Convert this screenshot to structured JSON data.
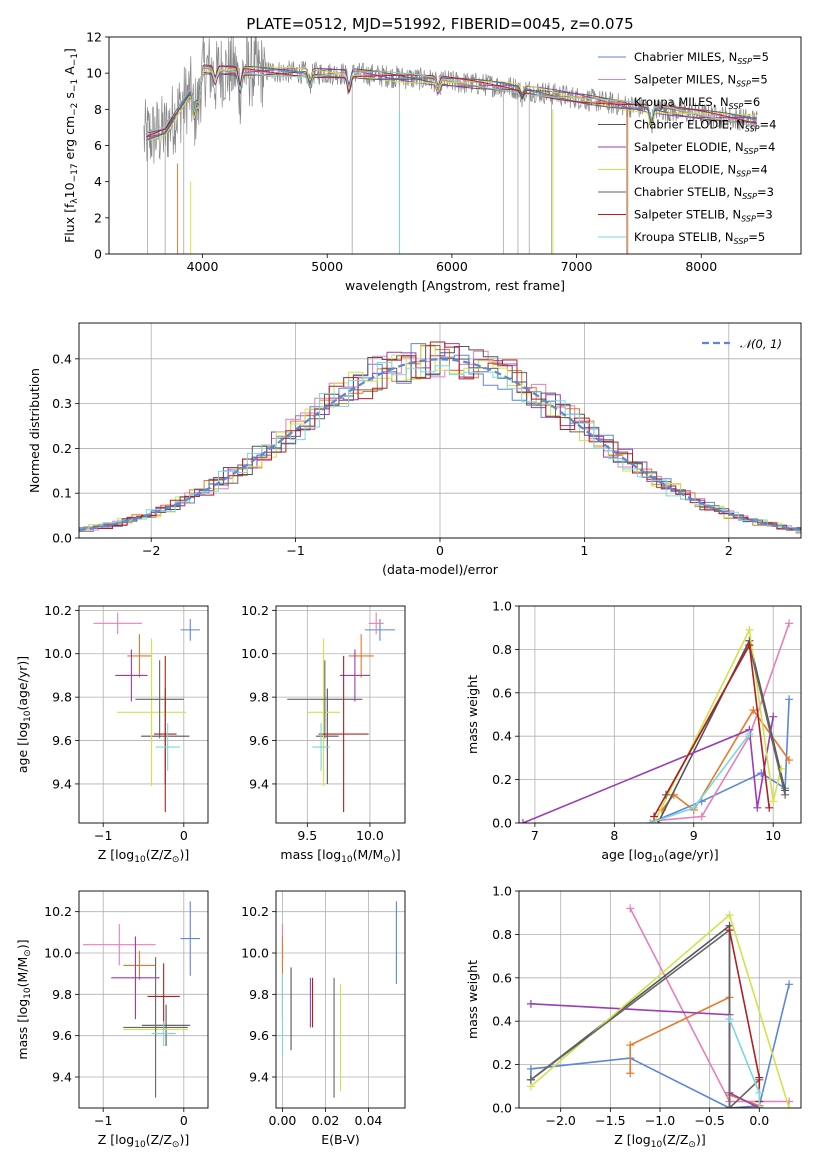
{
  "title": "PLATE=0512, MJD=51992, FIBERID=0045, z=0.075",
  "colors": {
    "chab_miles": "#5b87d8",
    "salp_miles": "#e87fb8",
    "krou_miles": "#e8782a",
    "chab_elodie": "#555555",
    "salp_elodie": "#9a3db5",
    "krou_elodie": "#d2e24a",
    "chab_stelib": "#666666",
    "salp_stelib": "#b02020",
    "krou_stelib": "#7ad8dc",
    "gaussian": "#5b87d8",
    "data": "#888888"
  },
  "chart_data": [
    {
      "id": "spectrum",
      "type": "line",
      "title": "PLATE=0512, MJD=51992, FIBERID=0045, z=0.075",
      "xlabel": "wavelength [Angstrom, rest frame]",
      "ylabel_parts": [
        "Flux [f",
        "λ",
        "10",
        "−17",
        " erg cm",
        "−2",
        " s",
        "−1",
        " A",
        "−1",
        "]"
      ],
      "xlim": [
        3250,
        8800
      ],
      "ylim": [
        0,
        12
      ],
      "xticks": [
        "4000",
        "5000",
        "6000",
        "7000",
        "8000"
      ],
      "yticks": [
        "0",
        "2",
        "4",
        "6",
        "8",
        "10",
        "12"
      ],
      "legend_position": "upper-right",
      "legend": [
        {
          "base": "Chabrier MILES, N",
          "sub": "SSP",
          "tail": "=5",
          "color_key": "chab_miles"
        },
        {
          "base": "Salpeter MILES, N",
          "sub": "SSP",
          "tail": "=5",
          "color_key": "salp_miles"
        },
        {
          "base": "Kroupa MILES, N",
          "sub": "SSP",
          "tail": "=6",
          "color_key": "krou_miles"
        },
        {
          "base": "Chabrier ELODIE, N",
          "sub": "SSP",
          "tail": "=4",
          "color_key": "chab_elodie"
        },
        {
          "base": "Salpeter ELODIE, N",
          "sub": "SSP",
          "tail": "=4",
          "color_key": "salp_elodie"
        },
        {
          "base": "Kroupa ELODIE, N",
          "sub": "SSP",
          "tail": "=4",
          "color_key": "krou_elodie"
        },
        {
          "base": "Chabrier STELIB, N",
          "sub": "SSP",
          "tail": "=3",
          "color_key": "chab_stelib"
        },
        {
          "base": "Salpeter STELIB, N",
          "sub": "SSP",
          "tail": "=3",
          "color_key": "salp_stelib"
        },
        {
          "base": "Kroupa STELIB, N",
          "sub": "SSP",
          "tail": "=5",
          "color_key": "krou_stelib"
        }
      ]
    },
    {
      "id": "residuals",
      "type": "histogram",
      "xlabel": "(data-model)/error",
      "ylabel": "Normed distribution",
      "xlim": [
        -2.5,
        2.5
      ],
      "ylim": [
        0,
        0.48
      ],
      "xticks": [
        "−2",
        "−1",
        "0",
        "1",
        "2"
      ],
      "yticks": [
        "0.0",
        "0.1",
        "0.2",
        "0.3",
        "0.4"
      ],
      "grid": true,
      "legend_position": "upper-right",
      "legend_label": "𝒩(0, 1)"
    },
    {
      "id": "age_vs_Z",
      "type": "scatter",
      "xlabel_parts": [
        "Z [log",
        "10",
        "(Z/Z",
        "⊙",
        ")]"
      ],
      "ylabel_parts": [
        "age  [log",
        "10",
        "(age/yr)]"
      ],
      "xlim": [
        -1.3,
        0.3
      ],
      "ylim": [
        9.22,
        10.22
      ],
      "xticks": [
        "−1",
        "0"
      ],
      "yticks": [
        "9.4",
        "9.6",
        "9.8",
        "10.0",
        "10.2"
      ],
      "grid": true,
      "points": [
        {
          "k": "chab_miles",
          "x": 0.08,
          "xe": 0.12,
          "y": 10.11,
          "ye": 0.05
        },
        {
          "k": "salp_miles",
          "x": -0.82,
          "xe": 0.3,
          "y": 10.14,
          "ye": 0.05
        },
        {
          "k": "krou_miles",
          "x": -0.55,
          "xe": 0.15,
          "y": 9.99,
          "ye": 0.1
        },
        {
          "k": "chab_elodie",
          "x": -0.23,
          "xe": 0.3,
          "y": 9.62,
          "ye": 0.22
        },
        {
          "k": "salp_elodie",
          "x": -0.65,
          "xe": 0.2,
          "y": 9.9,
          "ye": 0.12
        },
        {
          "k": "krou_elodie",
          "x": -0.4,
          "xe": 0.43,
          "y": 9.73,
          "ye": 0.34
        },
        {
          "k": "chab_stelib",
          "x": -0.3,
          "xe": 0.3,
          "y": 9.79,
          "ye": 0.18
        },
        {
          "k": "salp_stelib",
          "x": -0.23,
          "xe": 0.14,
          "y": 9.63,
          "ye": 0.36
        },
        {
          "k": "krou_stelib",
          "x": -0.2,
          "xe": 0.15,
          "y": 9.57,
          "ye": 0.11
        }
      ]
    },
    {
      "id": "age_vs_mass",
      "type": "scatter",
      "xlabel_parts": [
        "mass [log",
        "10",
        "(M/M",
        "⊙",
        ")]"
      ],
      "ylabel": "",
      "xlim": [
        9.25,
        10.28
      ],
      "ylim": [
        9.22,
        10.22
      ],
      "xticks": [
        "9.5",
        "10.0"
      ],
      "yticks": [
        "9.4",
        "9.6",
        "9.8",
        "10.0",
        "10.2"
      ],
      "grid": true,
      "points": [
        {
          "k": "chab_miles",
          "x": 10.08,
          "xe": 0.12,
          "y": 10.11,
          "ye": 0.05
        },
        {
          "k": "salp_miles",
          "x": 10.05,
          "xe": 0.06,
          "y": 10.14,
          "ye": 0.05
        },
        {
          "k": "krou_miles",
          "x": 9.93,
          "xe": 0.1,
          "y": 9.99,
          "ye": 0.1
        },
        {
          "k": "chab_elodie",
          "x": 9.66,
          "xe": 0.09,
          "y": 9.62,
          "ye": 0.22
        },
        {
          "k": "salp_elodie",
          "x": 9.88,
          "xe": 0.12,
          "y": 9.9,
          "ye": 0.12
        },
        {
          "k": "krou_elodie",
          "x": 9.63,
          "xe": 0.13,
          "y": 9.73,
          "ye": 0.34
        },
        {
          "k": "chab_stelib",
          "x": 9.64,
          "xe": 0.3,
          "y": 9.79,
          "ye": 0.18
        },
        {
          "k": "salp_stelib",
          "x": 9.79,
          "xe": 0.2,
          "y": 9.63,
          "ye": 0.36
        },
        {
          "k": "krou_stelib",
          "x": 9.61,
          "xe": 0.07,
          "y": 9.57,
          "ye": 0.11
        }
      ]
    },
    {
      "id": "weight_vs_age",
      "type": "line",
      "xlabel_parts": [
        "age  [log",
        "10",
        "(age/yr)]"
      ],
      "ylabel": "mass weight",
      "xlim": [
        6.8,
        10.35
      ],
      "ylim": [
        0,
        1.0
      ],
      "xticks": [
        "7",
        "8",
        "9",
        "10"
      ],
      "yticks": [
        "0.0",
        "0.2",
        "0.4",
        "0.6",
        "0.8",
        "1.0"
      ],
      "grid": true,
      "series": [
        {
          "k": "chab_miles",
          "x": [
            8.45,
            9.1,
            9.85,
            10.15,
            10.2
          ],
          "y": [
            0.0,
            0.1,
            0.23,
            0.16,
            0.57
          ]
        },
        {
          "k": "salp_miles",
          "x": [
            8.5,
            9.1,
            9.7,
            10.2
          ],
          "y": [
            0.01,
            0.03,
            0.4,
            0.92
          ]
        },
        {
          "k": "krou_miles",
          "x": [
            8.6,
            8.75,
            9.0,
            9.75,
            10.2
          ],
          "y": [
            0.06,
            0.13,
            0.06,
            0.52,
            0.29
          ]
        },
        {
          "k": "chab_elodie",
          "x": [
            8.55,
            9.7,
            10.15
          ],
          "y": [
            0.0,
            0.84,
            0.15
          ]
        },
        {
          "k": "salp_elodie",
          "x": [
            6.85,
            9.7,
            9.8,
            10.0
          ],
          "y": [
            0.0,
            0.43,
            0.07,
            0.49
          ]
        },
        {
          "k": "krou_elodie",
          "x": [
            8.5,
            9.7,
            10.0,
            10.1
          ],
          "y": [
            0.0,
            0.89,
            0.1,
            0.25
          ]
        },
        {
          "k": "chab_stelib",
          "x": [
            8.65,
            9.7,
            10.15
          ],
          "y": [
            0.13,
            0.82,
            0.13
          ]
        },
        {
          "k": "salp_stelib",
          "x": [
            8.5,
            9.7,
            9.95
          ],
          "y": [
            0.03,
            0.82,
            0.07
          ]
        },
        {
          "k": "krou_stelib",
          "x": [
            8.45,
            9.0,
            9.7
          ],
          "y": [
            0.0,
            0.07,
            0.41
          ]
        }
      ]
    },
    {
      "id": "mass_vs_Z",
      "type": "scatter",
      "xlabel_parts": [
        "Z [log",
        "10",
        "(Z/Z",
        "⊙",
        ")]"
      ],
      "ylabel_parts": [
        "mass [log",
        "10",
        "(M/M",
        "⊙",
        ")]"
      ],
      "xlim": [
        -1.3,
        0.3
      ],
      "ylim": [
        9.25,
        10.3
      ],
      "xticks": [
        "−1",
        "0"
      ],
      "yticks": [
        "9.4",
        "9.6",
        "9.8",
        "10.0",
        "10.2"
      ],
      "grid": true,
      "points": [
        {
          "k": "chab_miles",
          "x": 0.08,
          "xe": 0.12,
          "y": 10.07,
          "ye": 0.18
        },
        {
          "k": "salp_miles",
          "x": -0.8,
          "xe": 0.45,
          "y": 10.04,
          "ye": 0.1
        },
        {
          "k": "krou_miles",
          "x": -0.55,
          "xe": 0.2,
          "y": 9.94,
          "ye": 0.07
        },
        {
          "k": "chab_elodie",
          "x": -0.22,
          "xe": 0.3,
          "y": 9.65,
          "ye": 0.1
        },
        {
          "k": "salp_elodie",
          "x": -0.6,
          "xe": 0.3,
          "y": 9.88,
          "ye": 0.2
        },
        {
          "k": "krou_elodie",
          "x": -0.35,
          "xe": 0.4,
          "y": 9.63,
          "ye": 0.03
        },
        {
          "k": "chab_stelib",
          "x": -0.35,
          "xe": 0.4,
          "y": 9.64,
          "ye": 0.34
        },
        {
          "k": "salp_stelib",
          "x": -0.25,
          "xe": 0.2,
          "y": 9.79,
          "ye": 0.16
        },
        {
          "k": "krou_stelib",
          "x": -0.25,
          "xe": 0.15,
          "y": 9.61,
          "ye": 0.06
        }
      ]
    },
    {
      "id": "ebv",
      "type": "scatter",
      "xlabel": "E(B-V)",
      "ylabel": "",
      "xlim": [
        -0.003,
        0.057
      ],
      "ylim": [
        9.25,
        10.3
      ],
      "xticks": [
        "0.00",
        "0.02",
        "0.04"
      ],
      "yticks": [
        "9.4",
        "9.6",
        "9.8",
        "10.0",
        "10.2"
      ],
      "grid": true,
      "points": [
        {
          "k": "chab_miles",
          "x": 0.053,
          "y": 10.05,
          "ye": 0.2
        },
        {
          "k": "salp_miles",
          "x": 0.0,
          "y": 10.04,
          "ye": 0.1
        },
        {
          "k": "krou_miles",
          "x": 0.0,
          "y": 9.88,
          "ye": 0.2
        },
        {
          "k": "chab_elodie",
          "x": 0.004,
          "y": 9.73,
          "ye": 0.2
        },
        {
          "k": "salp_elodie",
          "x": 0.013,
          "y": 9.76,
          "ye": 0.12
        },
        {
          "k": "krou_elodie",
          "x": 0.027,
          "y": 9.59,
          "ye": 0.26
        },
        {
          "k": "chab_stelib",
          "x": 0.024,
          "y": 9.59,
          "ye": 0.29
        },
        {
          "k": "salp_stelib",
          "x": 0.014,
          "y": 9.76,
          "ye": 0.12
        },
        {
          "k": "krou_stelib",
          "x": 0.0,
          "y": 9.7,
          "ye": 0.2
        }
      ]
    },
    {
      "id": "weight_vs_Z",
      "type": "line",
      "xlabel_parts": [
        "Z [log",
        "10",
        "(Z/Z",
        "⊙",
        ")]"
      ],
      "ylabel": "mass weight",
      "xlim": [
        -2.42,
        0.42
      ],
      "ylim": [
        0,
        1.0
      ],
      "xticks": [
        "−2.0",
        "−1.5",
        "−1.0",
        "−0.5",
        "0.0"
      ],
      "yticks": [
        "0.0",
        "0.2",
        "0.4",
        "0.6",
        "0.8",
        "1.0"
      ],
      "grid": true,
      "series": [
        {
          "k": "chab_miles",
          "x": [
            -2.3,
            -2.3,
            -1.3,
            -0.3,
            0.0,
            0.3
          ],
          "y": [
            0.13,
            0.18,
            0.23,
            0.0,
            0.01,
            0.57
          ]
        },
        {
          "k": "salp_miles",
          "x": [
            -1.3,
            -0.3,
            0.3
          ],
          "y": [
            0.92,
            0.03,
            0.03
          ]
        },
        {
          "k": "krou_miles",
          "x": [
            -1.3,
            -1.3,
            -0.3,
            -0.3,
            0.0
          ],
          "y": [
            0.16,
            0.29,
            0.51,
            0.06,
            0.01
          ]
        },
        {
          "k": "chab_elodie",
          "x": [
            -2.3,
            -0.3,
            -0.3,
            0.0
          ],
          "y": [
            0.13,
            0.84,
            0.0,
            0.0
          ]
        },
        {
          "k": "salp_elodie",
          "x": [
            -2.3,
            -0.3,
            -0.3,
            0.0
          ],
          "y": [
            0.48,
            0.43,
            0.07,
            0.0
          ]
        },
        {
          "k": "krou_elodie",
          "x": [
            -2.3,
            -0.3,
            0.3
          ],
          "y": [
            0.1,
            0.89,
            0.0
          ]
        },
        {
          "k": "chab_stelib",
          "x": [
            -2.3,
            -0.3,
            -0.3,
            0.0
          ],
          "y": [
            0.13,
            0.82,
            0.0,
            0.13
          ]
        },
        {
          "k": "salp_stelib",
          "x": [
            -0.3,
            0.0,
            0.0
          ],
          "y": [
            0.82,
            0.14,
            0.03
          ]
        },
        {
          "k": "krou_stelib",
          "x": [
            -0.3,
            0.0,
            0.0
          ],
          "y": [
            0.41,
            0.07,
            0.0
          ]
        }
      ]
    }
  ]
}
